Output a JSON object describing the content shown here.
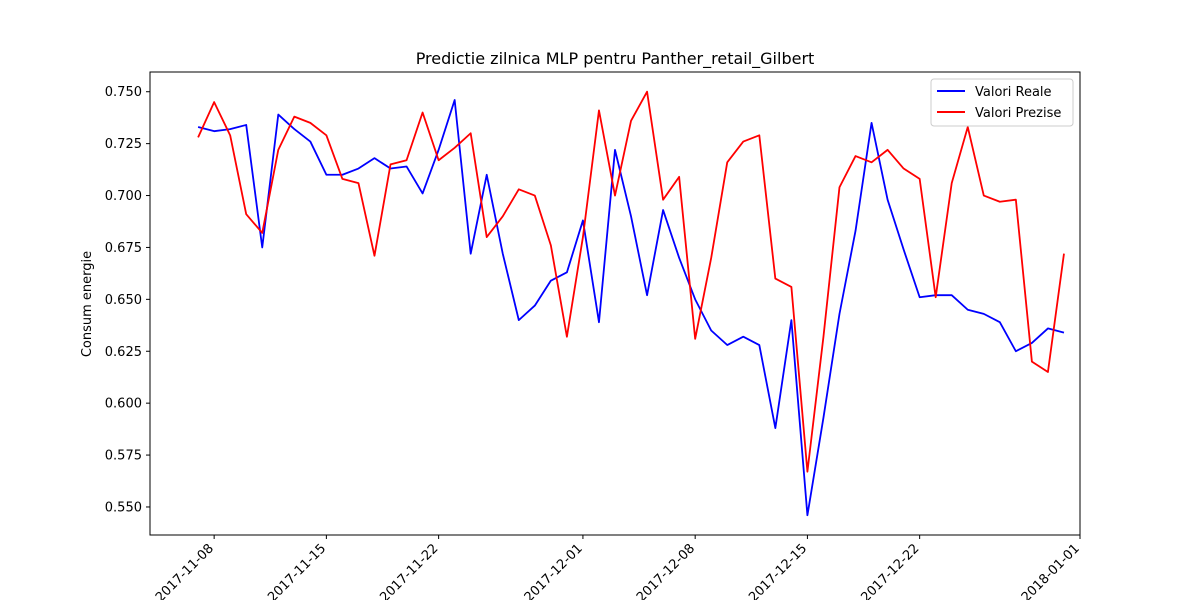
{
  "chart_data": {
    "type": "line",
    "title": "Predictie zilnica MLP pentru Panther_retail_Gilbert",
    "xlabel": "",
    "ylabel": "Consum energie",
    "x_range": [
      "2017-11-04",
      "2018-01-01"
    ],
    "ylim": [
      0.5365,
      0.7595
    ],
    "x_ticks": [
      "2017-11-08",
      "2017-11-15",
      "2017-11-22",
      "2017-12-01",
      "2017-12-08",
      "2017-12-15",
      "2017-12-22",
      "2018-01-01"
    ],
    "y_ticks": [
      "0.550",
      "0.575",
      "0.600",
      "0.625",
      "0.650",
      "0.675",
      "0.700",
      "0.725",
      "0.750"
    ],
    "grid": false,
    "legend_position": "top-right",
    "x": [
      "2017-11-07",
      "2017-11-08",
      "2017-11-09",
      "2017-11-10",
      "2017-11-11",
      "2017-11-12",
      "2017-11-13",
      "2017-11-14",
      "2017-11-15",
      "2017-11-16",
      "2017-11-17",
      "2017-11-18",
      "2017-11-19",
      "2017-11-20",
      "2017-11-21",
      "2017-11-22",
      "2017-11-23",
      "2017-11-24",
      "2017-11-25",
      "2017-11-26",
      "2017-11-27",
      "2017-11-28",
      "2017-11-29",
      "2017-11-30",
      "2017-12-01",
      "2017-12-02",
      "2017-12-03",
      "2017-12-04",
      "2017-12-05",
      "2017-12-06",
      "2017-12-07",
      "2017-12-08",
      "2017-12-09",
      "2017-12-10",
      "2017-12-11",
      "2017-12-12",
      "2017-12-13",
      "2017-12-14",
      "2017-12-15",
      "2017-12-16",
      "2017-12-17",
      "2017-12-18",
      "2017-12-19",
      "2017-12-20",
      "2017-12-21",
      "2017-12-22",
      "2017-12-23",
      "2017-12-24",
      "2017-12-25",
      "2017-12-26",
      "2017-12-27",
      "2017-12-28",
      "2017-12-29",
      "2017-12-30",
      "2017-12-31"
    ],
    "series": [
      {
        "name": "Valori Reale",
        "color": "#0000ff",
        "values": [
          0.733,
          0.731,
          0.732,
          0.734,
          0.675,
          0.739,
          0.732,
          0.726,
          0.71,
          0.71,
          0.713,
          0.718,
          0.713,
          0.714,
          0.701,
          0.722,
          0.746,
          0.672,
          0.71,
          0.672,
          0.64,
          0.647,
          0.659,
          0.663,
          0.688,
          0.639,
          0.722,
          0.69,
          0.652,
          0.693,
          0.67,
          0.65,
          0.635,
          0.628,
          0.632,
          0.628,
          0.588,
          0.64,
          0.546,
          0.593,
          0.643,
          0.683,
          0.735,
          0.698,
          0.674,
          0.651,
          0.652,
          0.652,
          0.645,
          0.643,
          0.639,
          0.625,
          0.629,
          0.636,
          0.634
        ]
      },
      {
        "name": "Valori Prezise",
        "color": "#ff0000",
        "values": [
          0.728,
          0.745,
          0.729,
          0.691,
          0.682,
          0.722,
          0.738,
          0.735,
          0.729,
          0.708,
          0.706,
          0.671,
          0.715,
          0.717,
          0.74,
          0.717,
          0.723,
          0.73,
          0.68,
          0.69,
          0.703,
          0.7,
          0.676,
          0.632,
          0.68,
          0.741,
          0.7,
          0.736,
          0.75,
          0.698,
          0.709,
          0.631,
          0.67,
          0.716,
          0.726,
          0.729,
          0.66,
          0.656,
          0.567,
          0.632,
          0.704,
          0.719,
          0.716,
          0.722,
          0.713,
          0.708,
          0.651,
          0.706,
          0.733,
          0.7,
          0.697,
          0.698,
          0.62,
          0.615,
          0.672
        ]
      }
    ]
  }
}
